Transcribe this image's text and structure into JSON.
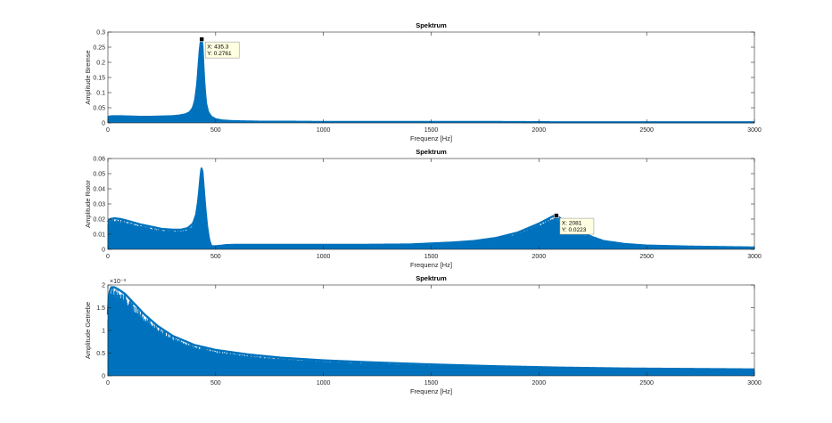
{
  "chart_data": [
    {
      "type": "area",
      "title": "Spektrum",
      "xlabel": "Frequenz [Hz]",
      "ylabel": "Amplitude Bremse",
      "xlim": [
        0,
        3000
      ],
      "ylim": [
        0,
        0.3
      ],
      "xticks": [
        0,
        500,
        1000,
        1500,
        2000,
        2500,
        3000
      ],
      "xtick_labels": [
        "0",
        "500",
        "1000",
        "1500",
        "2000",
        "2500",
        "3000"
      ],
      "yticks": [
        0,
        0.05,
        0.1,
        0.15,
        0.2,
        0.25,
        0.3
      ],
      "ytick_labels": [
        "0",
        "0.05",
        "0.1",
        "0.15",
        "0.2",
        "0.25",
        "0.3"
      ],
      "exponent_label": "",
      "grid": false,
      "color": "#0072BD",
      "series": [
        {
          "x": [
            0,
            20,
            50,
            100,
            150,
            200,
            250,
            300,
            330,
            360,
            380,
            395,
            405,
            415,
            422,
            428,
            432,
            435.3,
            438,
            442,
            448,
            455,
            465,
            480,
            500,
            530,
            570,
            620,
            700,
            800,
            1000,
            1200,
            1500,
            1800,
            2100,
            2400,
            2700,
            3000
          ],
          "y": [
            0.02,
            0.022,
            0.022,
            0.021,
            0.02,
            0.02,
            0.021,
            0.022,
            0.024,
            0.028,
            0.035,
            0.05,
            0.075,
            0.13,
            0.2,
            0.255,
            0.27,
            0.2761,
            0.265,
            0.2,
            0.12,
            0.065,
            0.035,
            0.02,
            0.012,
            0.008,
            0.006,
            0.005,
            0.004,
            0.004,
            0.003,
            0.003,
            0.003,
            0.003,
            0.002,
            0.002,
            0.002,
            0.002
          ]
        }
      ],
      "datatip": {
        "x": 435.3,
        "y": 0.2761,
        "x_text": "X: 435.3",
        "y_text": "Y: 0.2761"
      }
    },
    {
      "type": "area",
      "title": "Spektrum",
      "xlabel": "Frequenz [Hz]",
      "ylabel": "Amplitude Rotor",
      "xlim": [
        0,
        3000
      ],
      "ylim": [
        0,
        0.06
      ],
      "xticks": [
        0,
        500,
        1000,
        1500,
        2000,
        2500,
        3000
      ],
      "xtick_labels": [
        "0",
        "500",
        "1000",
        "1500",
        "2000",
        "2500",
        "3000"
      ],
      "yticks": [
        0,
        0.01,
        0.02,
        0.03,
        0.04,
        0.05,
        0.06
      ],
      "ytick_labels": [
        "0",
        "0.01",
        "0.02",
        "0.03",
        "0.04",
        "0.05",
        "0.06"
      ],
      "exponent_label": "",
      "grid": false,
      "color": "#0072BD",
      "series": [
        {
          "x": [
            0,
            10,
            30,
            60,
            100,
            150,
            200,
            250,
            300,
            340,
            370,
            395,
            410,
            420,
            428,
            433,
            437,
            442,
            450,
            460,
            470,
            480,
            500,
            550,
            600,
            800,
            1000,
            1200,
            1400,
            1600,
            1700,
            1800,
            1900,
            1950,
            2000,
            2040,
            2070,
            2081,
            2095,
            2120,
            2160,
            2200,
            2250,
            2300,
            2400,
            2500,
            2700,
            2900,
            3000
          ],
          "y": [
            0.018,
            0.02,
            0.0205,
            0.02,
            0.0185,
            0.0165,
            0.015,
            0.0135,
            0.013,
            0.013,
            0.014,
            0.017,
            0.023,
            0.033,
            0.045,
            0.053,
            0.054,
            0.045,
            0.03,
            0.015,
            0.006,
            0.002,
            0.002,
            0.0028,
            0.003,
            0.003,
            0.003,
            0.003,
            0.0032,
            0.0045,
            0.0055,
            0.0075,
            0.011,
            0.014,
            0.017,
            0.02,
            0.0222,
            0.0223,
            0.021,
            0.018,
            0.014,
            0.011,
            0.008,
            0.0055,
            0.0035,
            0.0025,
            0.0018,
            0.0014,
            0.0012
          ]
        }
      ],
      "datatip": {
        "x": 2081,
        "y": 0.0223,
        "x_text": "X: 2081",
        "y_text": "Y: 0.0223"
      }
    },
    {
      "type": "area",
      "title": "Spektrum",
      "xlabel": "Frequenz [Hz]",
      "ylabel": "Amplitude Getriebe",
      "xlim": [
        0,
        3000
      ],
      "ylim": [
        0,
        0.002
      ],
      "xticks": [
        0,
        500,
        1000,
        1500,
        2000,
        2500,
        3000
      ],
      "xtick_labels": [
        "0",
        "500",
        "1000",
        "1500",
        "2000",
        "2500",
        "3000"
      ],
      "yticks": [
        0,
        0.0005,
        0.001,
        0.0015,
        0.002
      ],
      "ytick_labels": [
        "0",
        "0.5",
        "1",
        "1.5",
        "2"
      ],
      "exponent_label": "×10⁻³",
      "grid": false,
      "color": "#0072BD",
      "series": [
        {
          "x": [
            0,
            5,
            15,
            30,
            50,
            80,
            120,
            170,
            230,
            300,
            400,
            500,
            650,
            800,
            1000,
            1200,
            1500,
            1800,
            2100,
            2400,
            2700,
            3000
          ],
          "y": [
            0.00135,
            0.0018,
            0.00195,
            0.00195,
            0.0019,
            0.0018,
            0.0016,
            0.00135,
            0.0011,
            0.00088,
            0.00068,
            0.00057,
            0.00047,
            0.0004,
            0.00034,
            0.0003,
            0.00025,
            0.00021,
            0.00018,
            0.00016,
            0.00015,
            0.00014
          ]
        }
      ],
      "datatip": null
    }
  ]
}
